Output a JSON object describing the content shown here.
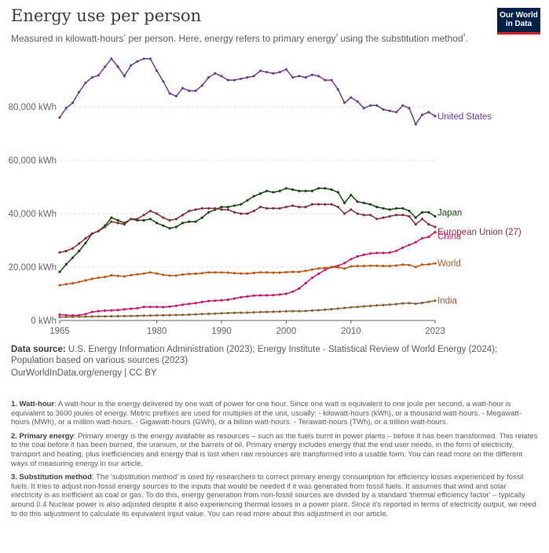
{
  "header": {
    "title": "Energy use per person",
    "subtitle": "Measured in kilowatt-hours¹ per person. Here, energy refers to primary energy² using the substitution method³.",
    "logo_line1": "Our World",
    "logo_line2": "in Data"
  },
  "colors": {
    "United States": "#6d3e91",
    "Japan": "#18470f",
    "European Union (27)": "#883039",
    "China": "#c9196f",
    "World": "#c05917",
    "India": "#8c6239",
    "grid": "#dddddd",
    "axis": "#666666"
  },
  "chart_data": {
    "type": "line",
    "title": "Energy use per person",
    "xlabel": "",
    "ylabel": "",
    "xlim": [
      1965,
      2023
    ],
    "ylim": [
      0,
      100000
    ],
    "x_ticks": [
      1965,
      1980,
      1990,
      2000,
      2010,
      2023
    ],
    "x_tick_labels": [
      "1965",
      "1980",
      "1990",
      "2000",
      "2010",
      "2023"
    ],
    "y_ticks": [
      0,
      20000,
      40000,
      60000,
      80000
    ],
    "y_tick_labels": [
      "0 kWh",
      "20,000 kWh",
      "40,000 kWh",
      "60,000 kWh",
      "80,000 kWh"
    ],
    "grid": "horizontal dashed",
    "legend": "direct labels at line ends (right)",
    "x": [
      1965,
      1966,
      1967,
      1968,
      1969,
      1970,
      1971,
      1972,
      1973,
      1974,
      1975,
      1976,
      1977,
      1978,
      1979,
      1980,
      1981,
      1982,
      1983,
      1984,
      1985,
      1986,
      1987,
      1988,
      1989,
      1990,
      1991,
      1992,
      1993,
      1994,
      1995,
      1996,
      1997,
      1998,
      1999,
      2000,
      2001,
      2002,
      2003,
      2004,
      2005,
      2006,
      2007,
      2008,
      2009,
      2010,
      2011,
      2012,
      2013,
      2014,
      2015,
      2016,
      2017,
      2018,
      2019,
      2020,
      2021,
      2022,
      2023
    ],
    "series": [
      {
        "name": "United States",
        "values": [
          76000,
          79500,
          81500,
          85500,
          89000,
          91000,
          91800,
          95000,
          98000,
          95000,
          91500,
          95500,
          97000,
          98000,
          98000,
          93500,
          89500,
          85000,
          84000,
          87000,
          86000,
          86000,
          88000,
          91000,
          92500,
          91500,
          90000,
          90000,
          90500,
          91000,
          91500,
          93500,
          93000,
          92500,
          93000,
          94000,
          91000,
          91500,
          91000,
          92000,
          91500,
          90000,
          90000,
          86500,
          81500,
          83500,
          82000,
          79500,
          80500,
          80500,
          79000,
          78500,
          78000,
          80500,
          79500,
          73500,
          77000,
          78000,
          76500
        ]
      },
      {
        "name": "Japan",
        "values": [
          18200,
          21000,
          23500,
          26000,
          29000,
          32500,
          33500,
          35500,
          38500,
          37500,
          36500,
          38000,
          37500,
          37500,
          38000,
          36500,
          35500,
          34500,
          35000,
          36500,
          37000,
          37000,
          38500,
          40500,
          41500,
          42500,
          42500,
          43000,
          43500,
          45000,
          46500,
          47500,
          48500,
          48000,
          48500,
          49500,
          49000,
          48500,
          48500,
          48500,
          49500,
          49500,
          49000,
          48000,
          44000,
          47000,
          44500,
          44000,
          43500,
          42500,
          42000,
          41500,
          42000,
          42000,
          41000,
          38500,
          40500,
          40500,
          39000
        ]
      },
      {
        "name": "European Union (27)",
        "values": [
          25500,
          26000,
          27000,
          28800,
          30800,
          32500,
          33500,
          35000,
          37000,
          36500,
          36000,
          38000,
          38000,
          39500,
          41000,
          40000,
          38500,
          37500,
          38000,
          39500,
          41000,
          41500,
          42000,
          42000,
          42000,
          41500,
          41500,
          40500,
          40000,
          40000,
          41000,
          42500,
          42000,
          42000,
          42000,
          42500,
          43000,
          42500,
          42500,
          43500,
          43500,
          43500,
          43500,
          42500,
          40000,
          41500,
          40000,
          39500,
          39500,
          38000,
          38500,
          39000,
          39500,
          39500,
          39000,
          36000,
          38000,
          36000,
          35000
        ]
      },
      {
        "name": "China",
        "values": [
          2200,
          2000,
          1900,
          2000,
          2400,
          3200,
          3500,
          3700,
          3800,
          3900,
          4200,
          4400,
          4600,
          5100,
          5100,
          5100,
          5000,
          5200,
          5500,
          5900,
          6200,
          6500,
          6900,
          7300,
          7400,
          7600,
          7800,
          8200,
          8700,
          9000,
          9300,
          9400,
          9400,
          9500,
          9700,
          10000,
          10800,
          12000,
          14000,
          16000,
          17500,
          19000,
          20000,
          20500,
          21500,
          23000,
          24000,
          24600,
          25100,
          25300,
          25300,
          25400,
          26100,
          27300,
          28300,
          29300,
          30800,
          31300,
          33100
        ]
      },
      {
        "name": "World",
        "values": [
          13200,
          13600,
          13900,
          14400,
          15000,
          15600,
          16000,
          16300,
          16900,
          16700,
          16500,
          17000,
          17300,
          17600,
          18000,
          17600,
          17100,
          16800,
          16800,
          17200,
          17400,
          17500,
          17700,
          18000,
          18000,
          18000,
          17900,
          17700,
          17600,
          17600,
          17800,
          18000,
          18000,
          17900,
          17900,
          18100,
          18200,
          18200,
          18600,
          19100,
          19500,
          19700,
          19900,
          19900,
          19400,
          20300,
          20400,
          20400,
          20500,
          20500,
          20400,
          20400,
          20600,
          20900,
          20800,
          20000,
          20900,
          21000,
          21400
        ]
      },
      {
        "name": "India",
        "values": [
          1300,
          1320,
          1350,
          1400,
          1450,
          1500,
          1520,
          1550,
          1600,
          1620,
          1650,
          1700,
          1750,
          1800,
          1850,
          1900,
          1950,
          2000,
          2050,
          2120,
          2200,
          2300,
          2400,
          2500,
          2600,
          2700,
          2800,
          2850,
          2900,
          2950,
          3050,
          3150,
          3200,
          3250,
          3350,
          3450,
          3500,
          3500,
          3550,
          3750,
          3850,
          4050,
          4250,
          4450,
          4700,
          4900,
          5100,
          5300,
          5450,
          5650,
          5750,
          5950,
          6150,
          6400,
          6500,
          6300,
          6600,
          7000,
          7450
        ]
      }
    ]
  },
  "sources": {
    "label": "Data source:",
    "text": " U.S. Energy Information Administration (2023); Energy Institute - Statistical Review of World Energy (2024); Population based on various sources (2023)",
    "url_license": "OurWorldInData.org/energy | CC BY"
  },
  "notes": [
    {
      "label": "1. Watt-hour",
      "text": ": A watt-hour is the energy delivered by one watt of power for one hour. Since one watt is equivalent to one joule per second, a watt-hour is equivalent to 3600 joules of energy. Metric prefixes are used for multiples of the unit, usually: - kilowatt-hours (kWh), or a thousand watt-hours. - Megawatt-hours (MWh), or a million watt-hours. - Gigawatt-hours (GWh), or a billion watt-hours. - Terawatt-hours (TWh), or a trillion watt-hours."
    },
    {
      "label": "2. Primary energy",
      "text": ": Primary energy is the energy available as resources – such as the fuels burnt in power plants – before it has been transformed. This relates to the coal before it has been burned, the uranium, or the barrels of oil. Primary energy includes energy that the end user needs, in the form of electricity, transport and heating, plus inefficiencies and energy that is lost when raw resources are transformed into a usable form. You can read more on the different ways of measuring energy in our article."
    },
    {
      "label": "3. Substitution method",
      "text": ": The 'substitution method' is used by researchers to correct primary energy consumption for efficiency losses experienced by fossil fuels. It tries to adjust non-fossil energy sources to the inputs that would be needed if it was generated from fossil fuels. It assumes that wind and solar electricity is as inefficient as coal or gas. To do this, energy generation from non-fossil sources are divided by a standard 'thermal efficiency factor' – typically around 0.4 Nuclear power is also adjusted despite it also experiencing thermal losses in a power plant. Since it's reported in terms of electricity output, we need to do this adjustment to calculate its equivalent input value. You can read more about this adjustment in our article."
    }
  ]
}
